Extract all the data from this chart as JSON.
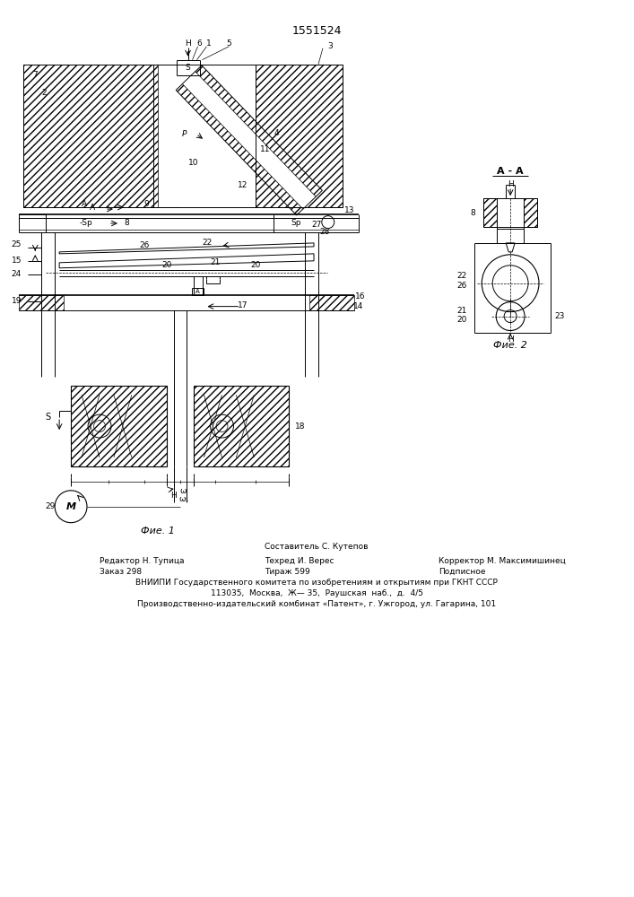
{
  "title": "1551524",
  "fig1_label": "Фие. 1",
  "fig2_label": "Фие. 2",
  "fig_aa_label": "А - А",
  "background_color": "#ffffff",
  "line_color": "#000000",
  "footer_line0": "Составитель С. Кутепов",
  "footer_line1_l": "Редактор Н. Тупица",
  "footer_line1_c": "Техред И. Верес",
  "footer_line1_r": "Корректор М. Максимишинец",
  "footer_line2_l": "Заказ 298",
  "footer_line2_c": "Тираж 599",
  "footer_line2_r": "Подписное",
  "footer_line3": "ВНИИПИ Государственного комитета по изобретениям и открытиям при ГКНТ СССР",
  "footer_line4": "113035,  Москва,  Ж— 35,  Раушская  наб.,  д.  4/5",
  "footer_line5": "Производственно-издательский комбинат «Патент», г. Ужгород, ул. Гагарина, 101"
}
